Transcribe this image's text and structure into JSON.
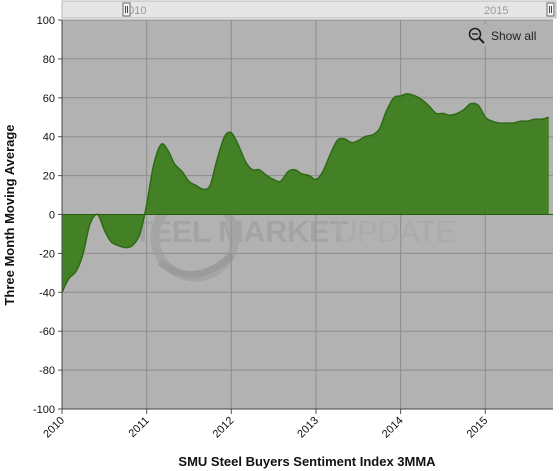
{
  "navigator": {
    "start_label": "2010",
    "end_label": "2015"
  },
  "controls": {
    "show_all_label": "Show all"
  },
  "watermark": {
    "text_bold": "STEEL MARKET",
    "text_light": "UPDATE"
  },
  "colors": {
    "plot_background": "#b2b2b2",
    "area_fill": "#3d7d1f",
    "area_stroke": "#2f6a15",
    "grid": "#8c8c8c"
  },
  "chart_data": {
    "type": "area",
    "title": "",
    "xlabel": "SMU Steel Buyers Sentiment Index 3MMA",
    "ylabel": "Three Month Moving Average",
    "ylim": [
      -100,
      100
    ],
    "yticks": [
      100,
      80,
      60,
      40,
      20,
      0,
      -20,
      -40,
      -60,
      -80,
      -100
    ],
    "xlim": [
      2010.0,
      2015.8
    ],
    "xticks": [
      "2010",
      "2011",
      "2012",
      "2013",
      "2014",
      "2015"
    ],
    "grid": true,
    "series": [
      {
        "x": [
          2010.0,
          2010.08,
          2010.17,
          2010.25,
          2010.33,
          2010.42,
          2010.5,
          2010.58,
          2010.67,
          2010.75,
          2010.83,
          2010.92,
          2011.0,
          2011.08,
          2011.17,
          2011.25,
          2011.33,
          2011.42,
          2011.5,
          2011.58,
          2011.67,
          2011.75,
          2011.83,
          2011.92,
          2012.0,
          2012.08,
          2012.17,
          2012.25,
          2012.33,
          2012.42,
          2012.5,
          2012.58,
          2012.67,
          2012.75,
          2012.83,
          2012.92,
          2013.0,
          2013.08,
          2013.17,
          2013.25,
          2013.33,
          2013.42,
          2013.5,
          2013.58,
          2013.67,
          2013.75,
          2013.83,
          2013.92,
          2014.0,
          2014.08,
          2014.17,
          2014.25,
          2014.33,
          2014.42,
          2014.5,
          2014.58,
          2014.67,
          2014.75,
          2014.83,
          2014.92,
          2015.0,
          2015.08,
          2015.17,
          2015.25,
          2015.33,
          2015.42,
          2015.5,
          2015.58,
          2015.67,
          2015.75
        ],
        "values": [
          -40,
          -33,
          -29,
          -20,
          -5,
          0,
          -8,
          -14,
          -16,
          -17,
          -16,
          -10,
          5,
          25,
          36,
          33,
          26,
          22,
          17,
          15,
          13,
          15,
          28,
          40,
          42,
          36,
          27,
          23,
          23,
          20,
          18,
          17,
          22,
          23,
          21,
          20,
          18,
          22,
          31,
          38,
          39,
          37,
          38,
          40,
          41,
          44,
          53,
          60,
          61,
          62,
          61,
          59,
          56,
          52,
          52,
          51,
          52,
          54,
          57,
          56,
          50,
          48,
          47,
          47,
          47,
          48,
          48,
          49,
          49,
          50
        ]
      }
    ]
  }
}
